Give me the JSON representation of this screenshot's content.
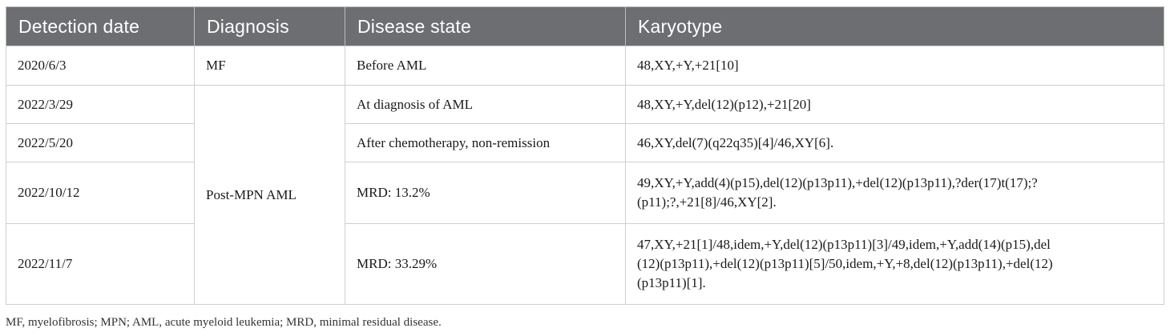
{
  "table": {
    "headers": [
      "Detection date",
      "Diagnosis",
      "Disease state",
      "Karyotype"
    ],
    "rows": [
      {
        "date": "2020/6/3",
        "diagnosis": "MF",
        "state": "Before AML",
        "karyotype": "48,XY,+Y,+21[10]"
      },
      {
        "date": "2022/3/29",
        "diagnosis": "Post-MPN AML",
        "state": "At diagnosis of AML",
        "karyotype": "48,XY,+Y,del(12)(p12),+21[20]"
      },
      {
        "date": "2022/5/20",
        "state": "After chemotherapy, non-remission",
        "karyotype": "46,XY,del(7)(q22q35)[4]/46,XY[6]."
      },
      {
        "date": "2022/10/12",
        "state": "MRD: 13.2%",
        "karyotype_lines": [
          "49,XY,+Y,add(4)(p15),del(12)(p13p11),+del(12)(p13p11),?der(17)t(17);?",
          "(p11);?,+21[8]/46,XY[2]."
        ]
      },
      {
        "date": "2022/11/7",
        "state": "MRD: 33.29%",
        "karyotype_lines": [
          "47,XY,+21[1]/48,idem,+Y,del(12)(p13p11)[3]/49,idem,+Y,add(14)(p15),del",
          "(12)(p13p11),+del(12)(p13p11)[5]/50,idem,+Y,+8,del(12)(p13p11),+del(12)",
          "(p13p11)[1]."
        ]
      }
    ]
  },
  "footnote": "MF, myelofibrosis; MPN; AML, acute myeloid leukemia; MRD, minimal residual disease."
}
